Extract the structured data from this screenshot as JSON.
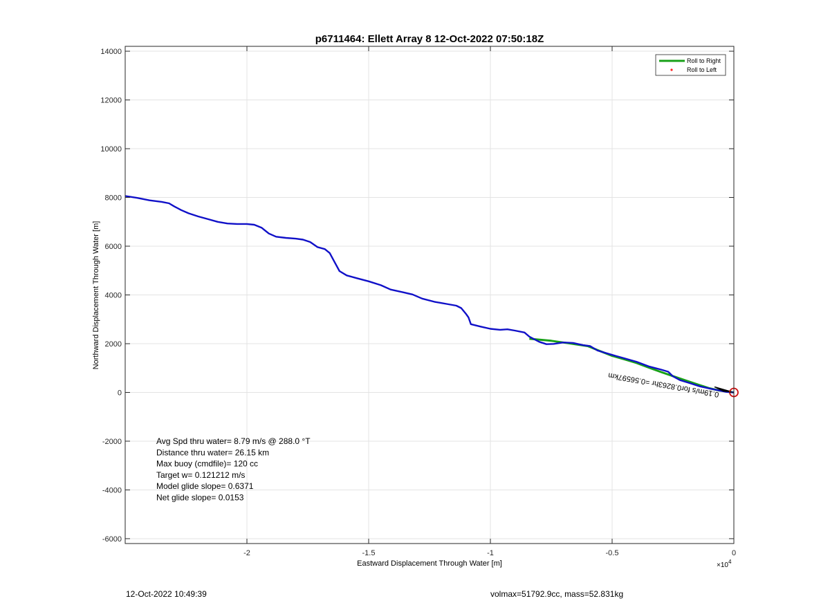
{
  "figure": {
    "footer_left": "12-Oct-2022 10:49:39",
    "footer_right": "volmax=51792.9cc, mass=52.831kg"
  },
  "chart_data": {
    "type": "line",
    "title": "p6711464: Ellett Array 8 12-Oct-2022 07:50:18Z",
    "xlabel": "Eastward Displacement Through Water [m]",
    "ylabel": "Northward Displacement Through Water [m]",
    "x_exponent_label": "×10",
    "x_exponent_power": "4",
    "xlim": [
      -2.5,
      0
    ],
    "ylim": [
      -6200,
      14200
    ],
    "x_ticks": [
      -2,
      -1.5,
      -1,
      -0.5,
      0
    ],
    "x_tick_labels": [
      "-2",
      "-1.5",
      "-1",
      "-0.5",
      "0"
    ],
    "y_ticks": [
      -6000,
      -4000,
      -2000,
      0,
      2000,
      4000,
      6000,
      8000,
      10000,
      12000,
      14000
    ],
    "y_tick_labels": [
      "-6000",
      "-4000",
      "-2000",
      "0",
      "2000",
      "4000",
      "6000",
      "8000",
      "10000",
      "12000",
      "14000"
    ],
    "grid": true,
    "legend_position": "top-right",
    "series": [
      {
        "name": "Roll to Right",
        "color": "#18a018",
        "style": "line",
        "points": [
          [
            -0.84,
            2200
          ],
          [
            -0.75,
            2120
          ],
          [
            -0.68,
            2020
          ],
          [
            -0.6,
            1900
          ],
          [
            -0.55,
            1700
          ],
          [
            -0.5,
            1500
          ],
          [
            -0.45,
            1360
          ],
          [
            -0.4,
            1210
          ],
          [
            -0.35,
            1020
          ],
          [
            -0.3,
            840
          ],
          [
            -0.25,
            670
          ],
          [
            -0.2,
            500
          ],
          [
            -0.15,
            330
          ],
          [
            -0.1,
            170
          ],
          [
            -0.06,
            80
          ],
          [
            -0.02,
            30
          ],
          [
            0,
            0
          ]
        ]
      },
      {
        "name": "Roll to Left",
        "color": "#ff2020",
        "style": "marker",
        "points": []
      },
      {
        "name": "",
        "color": "#1010c8",
        "style": "line",
        "points": [
          [
            -2.5,
            8060
          ],
          [
            -2.45,
            7980
          ],
          [
            -2.4,
            7880
          ],
          [
            -2.35,
            7820
          ],
          [
            -2.32,
            7760
          ],
          [
            -2.3,
            7640
          ],
          [
            -2.27,
            7480
          ],
          [
            -2.24,
            7350
          ],
          [
            -2.2,
            7220
          ],
          [
            -2.16,
            7110
          ],
          [
            -2.12,
            7000
          ],
          [
            -2.08,
            6930
          ],
          [
            -2.04,
            6910
          ],
          [
            -2.0,
            6910
          ],
          [
            -1.97,
            6880
          ],
          [
            -1.94,
            6760
          ],
          [
            -1.91,
            6520
          ],
          [
            -1.88,
            6390
          ],
          [
            -1.84,
            6340
          ],
          [
            -1.8,
            6310
          ],
          [
            -1.77,
            6270
          ],
          [
            -1.74,
            6170
          ],
          [
            -1.71,
            5960
          ],
          [
            -1.68,
            5880
          ],
          [
            -1.66,
            5720
          ],
          [
            -1.64,
            5350
          ],
          [
            -1.62,
            4980
          ],
          [
            -1.59,
            4800
          ],
          [
            -1.55,
            4690
          ],
          [
            -1.5,
            4560
          ],
          [
            -1.45,
            4400
          ],
          [
            -1.41,
            4220
          ],
          [
            -1.36,
            4110
          ],
          [
            -1.32,
            4020
          ],
          [
            -1.28,
            3850
          ],
          [
            -1.23,
            3720
          ],
          [
            -1.18,
            3630
          ],
          [
            -1.14,
            3560
          ],
          [
            -1.12,
            3460
          ],
          [
            -1.1,
            3220
          ],
          [
            -1.09,
            3080
          ],
          [
            -1.08,
            2800
          ],
          [
            -1.04,
            2700
          ],
          [
            -1.0,
            2610
          ],
          [
            -0.96,
            2570
          ],
          [
            -0.93,
            2590
          ],
          [
            -0.9,
            2540
          ],
          [
            -0.86,
            2460
          ],
          [
            -0.84,
            2290
          ],
          [
            -0.8,
            2080
          ],
          [
            -0.77,
            1980
          ],
          [
            -0.74,
            1990
          ],
          [
            -0.7,
            2050
          ],
          [
            -0.66,
            2030
          ],
          [
            -0.62,
            1940
          ],
          [
            -0.59,
            1900
          ],
          [
            -0.56,
            1720
          ],
          [
            -0.5,
            1540
          ],
          [
            -0.45,
            1400
          ],
          [
            -0.4,
            1260
          ],
          [
            -0.35,
            1070
          ],
          [
            -0.3,
            940
          ],
          [
            -0.27,
            850
          ],
          [
            -0.25,
            660
          ],
          [
            -0.22,
            500
          ],
          [
            -0.18,
            380
          ],
          [
            -0.14,
            250
          ],
          [
            -0.1,
            160
          ],
          [
            -0.06,
            80
          ],
          [
            -0.03,
            20
          ],
          [
            0,
            0
          ]
        ]
      }
    ],
    "stats_lines": [
      "Avg Spd thru water=  8.79 m/s @ 288.0 °T",
      "Distance thru water= 26.15 km",
      "Max buoy (cmdfile)= 120 cc",
      "Target w= 0.121212 m/s",
      "Model glide slope= 0.6371",
      "Net glide slope= 0.0153"
    ],
    "annotation": {
      "text": "0.19m/s for0.8263hr =0.56597km",
      "x": -0.06,
      "y": 0,
      "angle_deg": 190
    },
    "end_marker": {
      "x": 0,
      "y": 0,
      "color": "#cc1010"
    }
  }
}
